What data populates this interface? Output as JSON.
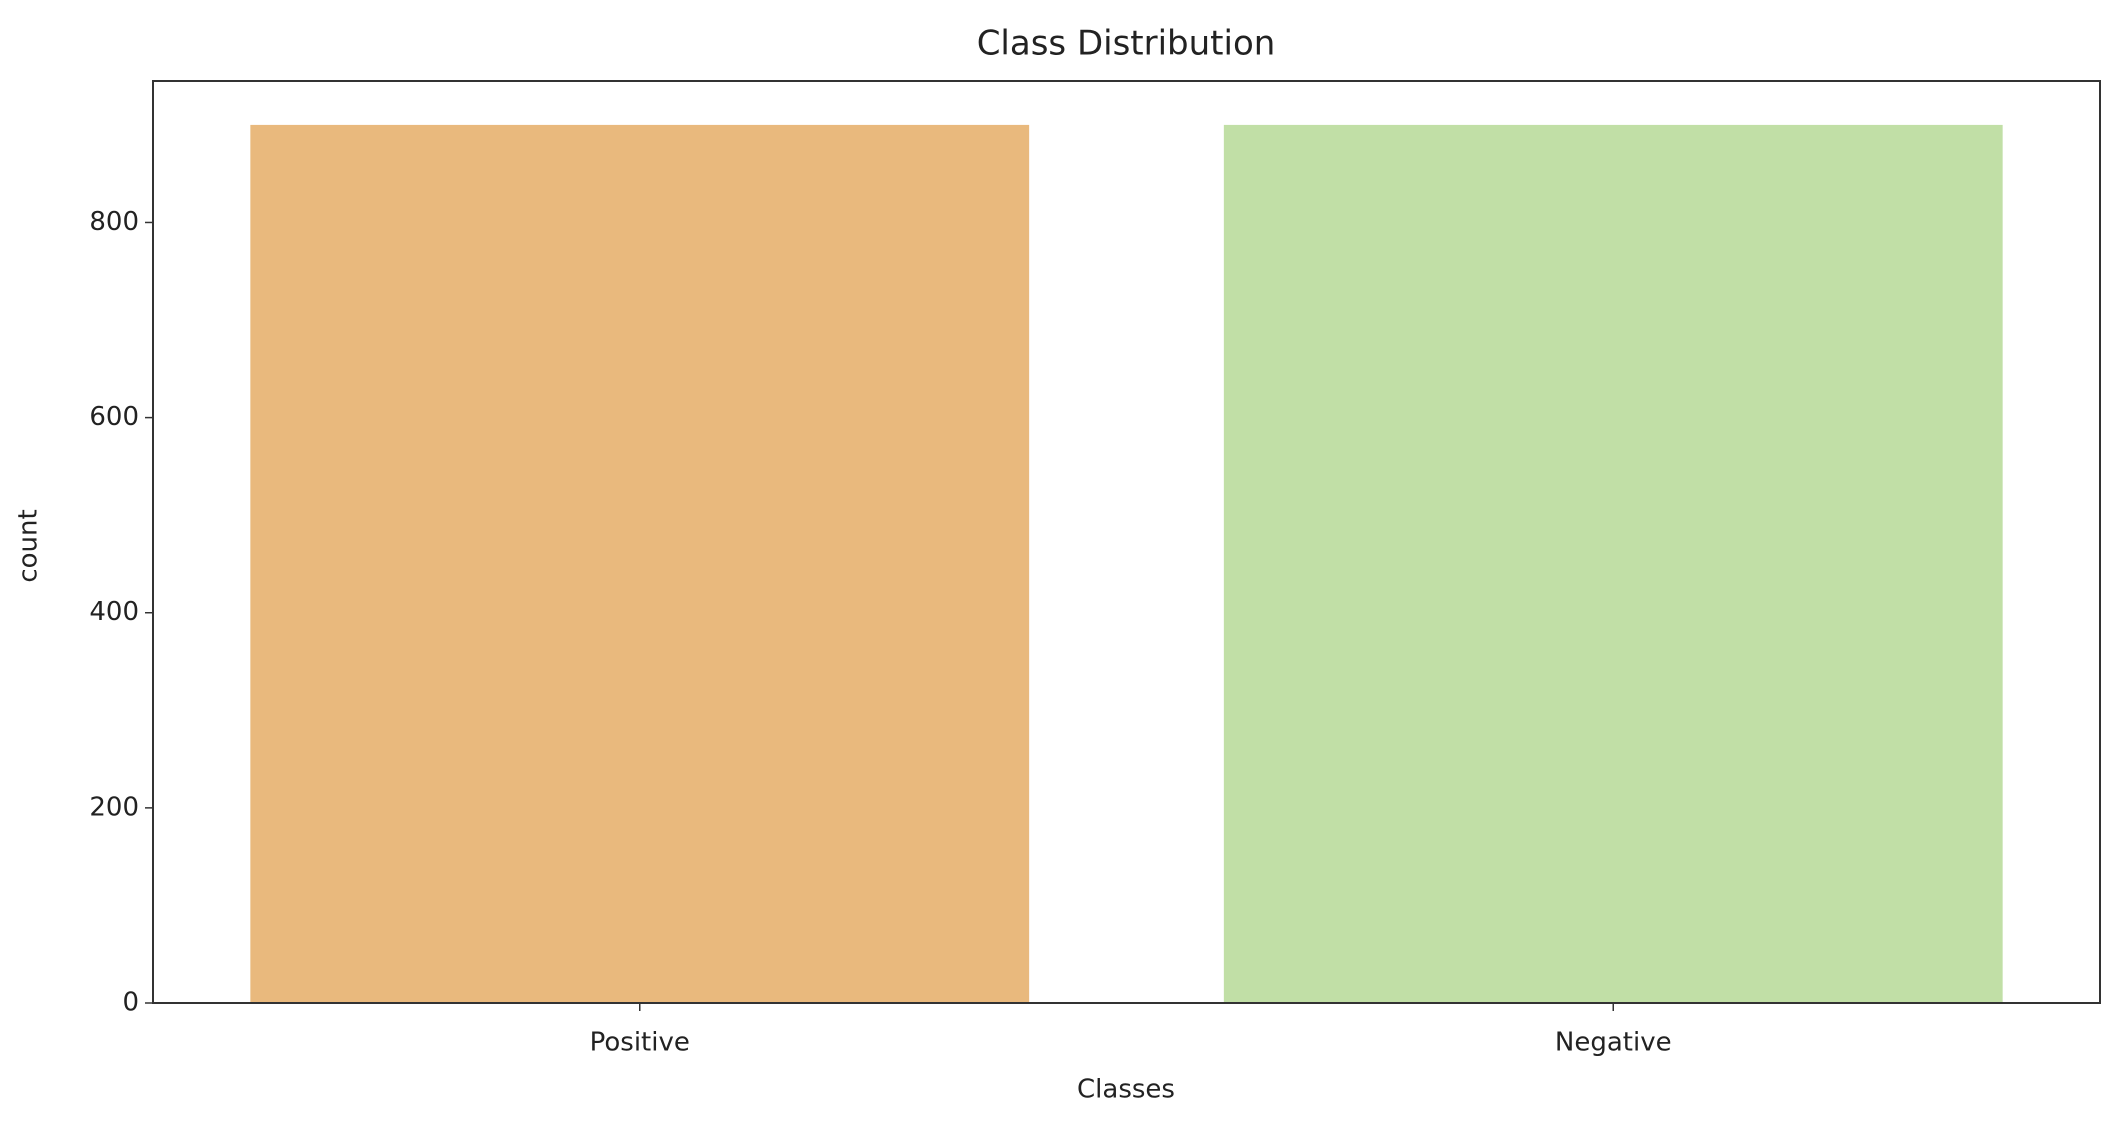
{
  "chart_data": {
    "type": "bar",
    "title": "Class Distribution",
    "x_label": "Classes",
    "y_label": "count",
    "categories": [
      "Positive",
      "Negative"
    ],
    "values": [
      900,
      900
    ],
    "colors": [
      "#e9b97d",
      "#c1dfa6"
    ],
    "ylim": [
      0,
      945
    ],
    "yticks": [
      0,
      200,
      400,
      600,
      800
    ],
    "grid": false
  }
}
